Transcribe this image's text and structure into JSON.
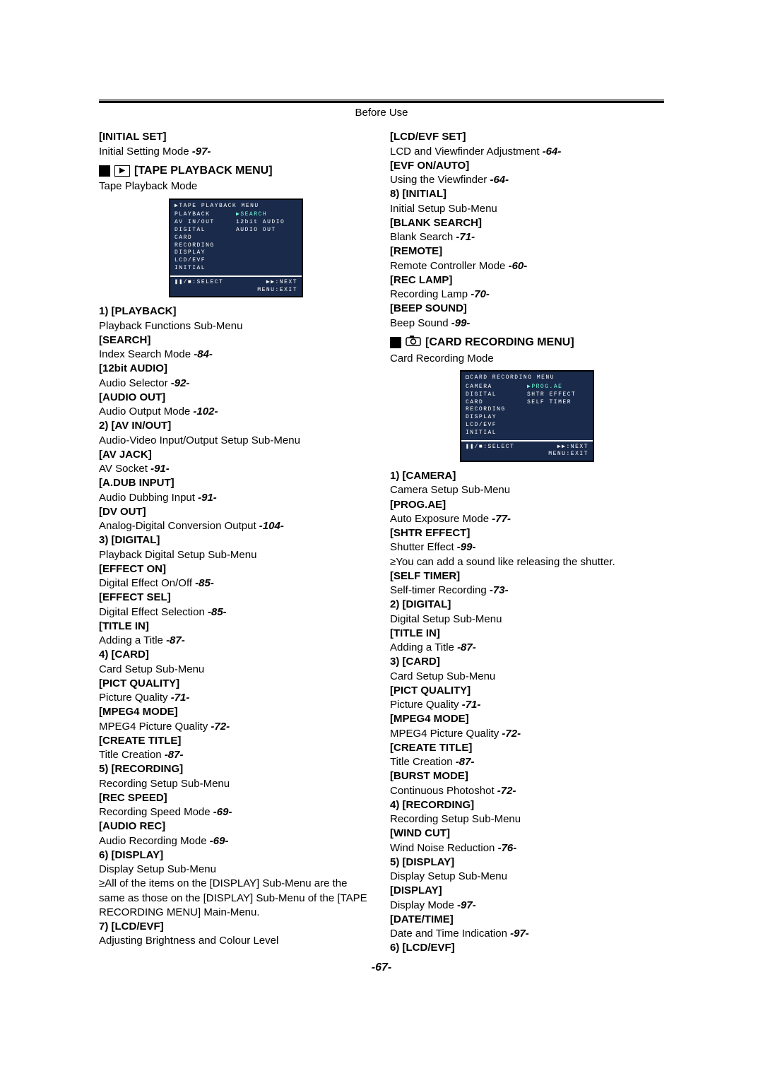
{
  "header": "Before Use",
  "page_number": "-67-",
  "left": {
    "initial_set": {
      "head": "[INITIAL SET]",
      "desc": "Initial Setting Mode ",
      "ref": "-97-"
    },
    "section": {
      "play_tri": "▶",
      "title": "[TAPE PLAYBACK MENU]",
      "subtitle": "Tape Playback Mode"
    },
    "menushot": {
      "title": "▶TAPE PLAYBACK MENU",
      "rows": [
        {
          "l": "PLAYBACK",
          "r": "▶SEARCH",
          "hlr": true
        },
        {
          "l": "AV IN/OUT",
          "r": "12bit AUDIO"
        },
        {
          "l": "DIGITAL",
          "r": "AUDIO OUT"
        },
        {
          "l": "CARD",
          "r": ""
        },
        {
          "l": "RECORDING",
          "r": ""
        },
        {
          "l": "DISPLAY",
          "r": ""
        },
        {
          "l": "LCD/EVF",
          "r": ""
        },
        {
          "l": "INITIAL",
          "r": ""
        }
      ],
      "bot1l": "❚❚/■:SELECT",
      "bot1r": "▶▶:NEXT",
      "bot2r": "MENU:EXIT"
    },
    "items": [
      {
        "head": "1)   [PLAYBACK]",
        "desc": "Playback Functions Sub-Menu"
      },
      {
        "head": "[SEARCH]",
        "desc": "Index Search Mode ",
        "ref": "-84-"
      },
      {
        "head": "[12bit AUDIO]",
        "desc": "Audio Selector ",
        "ref": "-92-"
      },
      {
        "head": "[AUDIO OUT]",
        "desc": "Audio Output Mode ",
        "ref": "-102-"
      },
      {
        "head": "2)   [AV IN/OUT]",
        "desc": "Audio-Video Input/Output Setup Sub-Menu"
      },
      {
        "head": "[AV JACK]",
        "desc": "AV Socket ",
        "ref": "-91-"
      },
      {
        "head": "[A.DUB INPUT]",
        "desc": "Audio Dubbing Input ",
        "ref": "-91-"
      },
      {
        "head": "[DV OUT]",
        "desc": "Analog-Digital Conversion Output ",
        "ref": "-104-"
      },
      {
        "head": "3)   [DIGITAL]",
        "desc": "Playback Digital Setup Sub-Menu"
      },
      {
        "head": "[EFFECT ON]",
        "desc": "Digital Effect On/Off ",
        "ref": "-85-"
      },
      {
        "head": "[EFFECT SEL]",
        "desc": "Digital Effect Selection ",
        "ref": "-85-"
      },
      {
        "head": "[TITLE IN]",
        "desc": "Adding a Title ",
        "ref": "-87-"
      },
      {
        "head": "4)   [CARD]",
        "desc": "Card Setup Sub-Menu"
      },
      {
        "head": "[PICT QUALITY]",
        "desc": "Picture Quality ",
        "ref": "-71-"
      },
      {
        "head": "[MPEG4 MODE]",
        "desc": "MPEG4 Picture Quality ",
        "ref": "-72-"
      },
      {
        "head": "[CREATE TITLE]",
        "desc": "Title Creation ",
        "ref": "-87-"
      },
      {
        "head": "5)   [RECORDING]",
        "desc": "Recording Setup Sub-Menu"
      },
      {
        "head": "[REC SPEED]",
        "desc": "Recording Speed Mode ",
        "ref": "-69-"
      },
      {
        "head": "[AUDIO REC]",
        "desc": "Audio Recording Mode ",
        "ref": "-69-"
      },
      {
        "head": "6)   [DISPLAY]",
        "desc": "Display Setup Sub-Menu"
      }
    ],
    "bullet": "≥All of the items on the [DISPLAY] Sub-Menu are the same as those on the [DISPLAY] Sub-Menu of the [TAPE RECORDING MENU] Main-Menu.",
    "after_bullet": [
      {
        "head": "7)   [LCD/EVF]",
        "desc": "Adjusting Brightness and Colour Level"
      }
    ]
  },
  "right": {
    "pre_items": [
      {
        "head": "[LCD/EVF SET]",
        "desc": "LCD and Viewfinder Adjustment ",
        "ref": "-64-"
      },
      {
        "head": "[EVF ON/AUTO]",
        "desc": "Using the Viewfinder ",
        "ref": "-64-"
      },
      {
        "head": "8)   [INITIAL]",
        "desc": "Initial Setup Sub-Menu"
      },
      {
        "head": "[BLANK SEARCH]",
        "desc": "Blank Search ",
        "ref": "-71-"
      },
      {
        "head": "[REMOTE]",
        "desc": "Remote Controller Mode ",
        "ref": "-60-"
      },
      {
        "head": "[REC LAMP]",
        "desc": "Recording Lamp ",
        "ref": "-70-"
      },
      {
        "head": "[BEEP SOUND]",
        "desc": "Beep Sound ",
        "ref": "-99-"
      }
    ],
    "section": {
      "title": "[CARD RECORDING MENU]",
      "subtitle": "Card Recording Mode"
    },
    "menushot": {
      "title": "◘CARD RECORDING MENU",
      "rows": [
        {
          "l": "CAMERA",
          "r": "▶PROG.AE",
          "hlr": true
        },
        {
          "l": "DIGITAL",
          "r": "SHTR EFFECT"
        },
        {
          "l": "CARD",
          "r": "SELF TIMER"
        },
        {
          "l": "RECORDING",
          "r": ""
        },
        {
          "l": "DISPLAY",
          "r": ""
        },
        {
          "l": "LCD/EVF",
          "r": ""
        },
        {
          "l": "INITIAL",
          "r": ""
        }
      ],
      "bot1l": "❚❚/■:SELECT",
      "bot1r": "▶▶:NEXT",
      "bot2r": "MENU:EXIT"
    },
    "items1": [
      {
        "head": "1)   [CAMERA]",
        "desc": "Camera Setup Sub-Menu"
      },
      {
        "head": "[PROG.AE]",
        "desc": "Auto Exposure Mode ",
        "ref": "-77-"
      },
      {
        "head": "[SHTR EFFECT]",
        "desc": "Shutter Effect ",
        "ref": "-99-"
      }
    ],
    "bullet": "≥You can add a sound like releasing the shutter.",
    "items2": [
      {
        "head": "[SELF TIMER]",
        "desc": "Self-timer Recording ",
        "ref": "-73-"
      },
      {
        "head": "2)   [DIGITAL]",
        "desc": "Digital Setup Sub-Menu"
      },
      {
        "head": "[TITLE IN]",
        "desc": "Adding a Title ",
        "ref": "-87-"
      },
      {
        "head": "3)   [CARD]",
        "desc": "Card Setup Sub-Menu"
      },
      {
        "head": "[PICT QUALITY]",
        "desc": "Picture Quality ",
        "ref": "-71-"
      },
      {
        "head": "[MPEG4 MODE]",
        "desc": "MPEG4 Picture Quality ",
        "ref": "-72-"
      },
      {
        "head": "[CREATE TITLE]",
        "desc": "Title Creation ",
        "ref": "-87-"
      },
      {
        "head": "[BURST MODE]",
        "desc": "Continuous Photoshot ",
        "ref": "-72-"
      },
      {
        "head": "4)   [RECORDING]",
        "desc": "Recording Setup Sub-Menu"
      },
      {
        "head": "[WIND CUT]",
        "desc": "Wind Noise Reduction ",
        "ref": "-76-"
      },
      {
        "head": "5)   [DISPLAY]",
        "desc": "Display Setup Sub-Menu"
      },
      {
        "head": "[DISPLAY]",
        "desc": "Display Mode ",
        "ref": "-97-"
      },
      {
        "head": "[DATE/TIME]",
        "desc": "Date and Time Indication ",
        "ref": "-97-"
      },
      {
        "head": "6)   [LCD/EVF]"
      }
    ]
  }
}
